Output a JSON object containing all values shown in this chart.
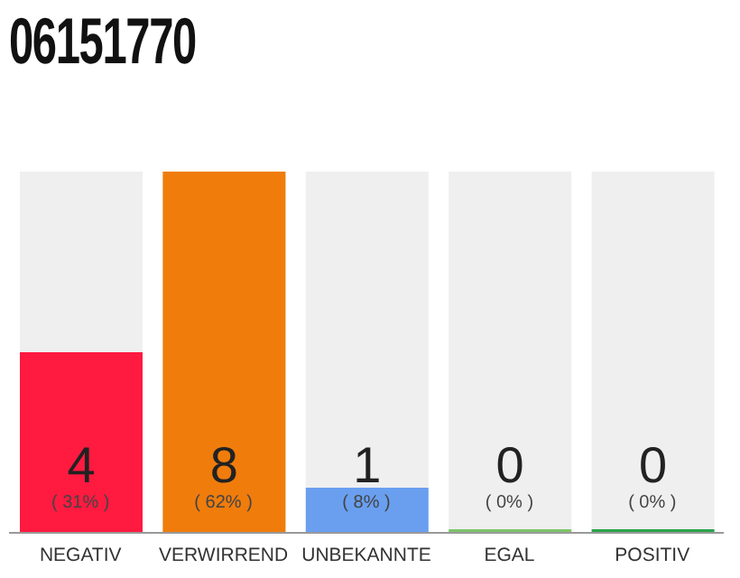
{
  "chart_data": {
    "type": "bar",
    "title": "06151770",
    "categories": [
      "NEGATIV",
      "VERWIRREND",
      "UNBEKANNTE",
      "EGAL",
      "POSITIV"
    ],
    "values": [
      4,
      8,
      1,
      0,
      0
    ],
    "colors": [
      "#ff1a40",
      "#f07c0c",
      "#6a9ff0",
      "#7dc56a",
      "#2aa44a"
    ],
    "ylim": [
      0,
      8
    ],
    "data_labels": true,
    "tick_labels": "x",
    "annotations": [
      "( 31% )",
      "( 62% )",
      "( 8% )",
      "( 0% )",
      "( 0% )"
    ]
  }
}
